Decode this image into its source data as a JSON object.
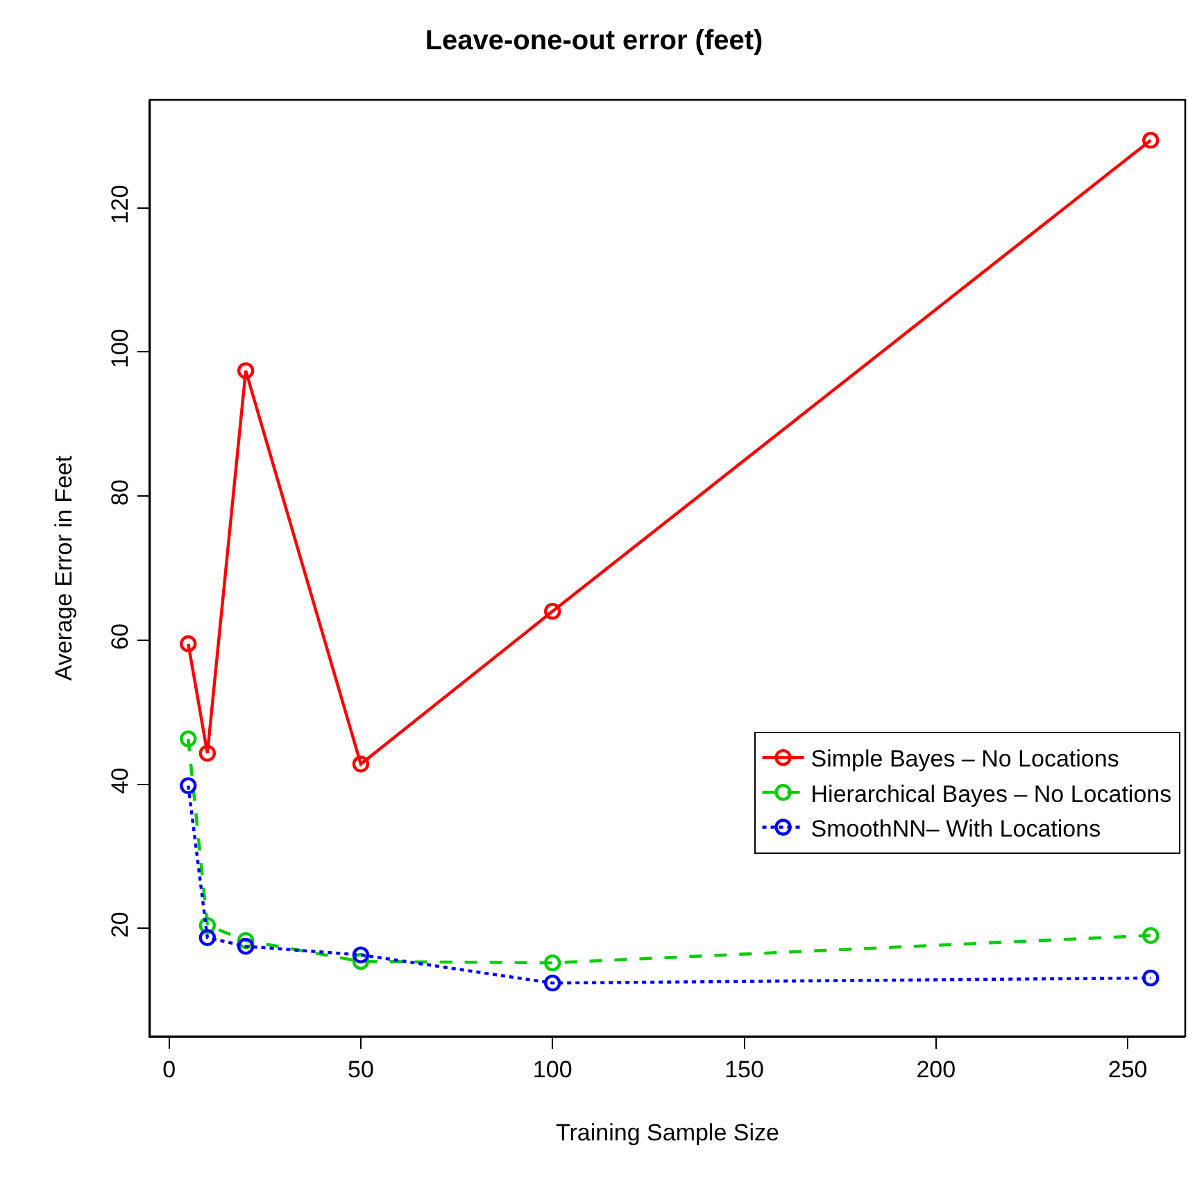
{
  "chart_data": {
    "type": "line",
    "title": "Leave-one-out error (feet)",
    "xlabel": "Training Sample Size",
    "ylabel": "Average Error in Feet",
    "x": [
      5,
      10,
      20,
      50,
      100,
      256
    ],
    "xlim": [
      -5,
      265
    ],
    "xticks": [
      0,
      50,
      100,
      150,
      200,
      250
    ],
    "ylim": [
      5,
      135
    ],
    "yticks": [
      20,
      40,
      60,
      80,
      100,
      120
    ],
    "legend": "right",
    "marker": "circle",
    "series": [
      {
        "name": "Simple Bayes – No Locations",
        "color": "#ff0000",
        "line_style": "solid",
        "values": [
          59.5,
          44.3,
          97.4,
          42.8,
          64,
          129.4
        ]
      },
      {
        "name": "Hierarchical Bayes – No Locations",
        "color": "#00cd00",
        "line_style": "dashed",
        "values": [
          46.3,
          20.4,
          18.3,
          15.4,
          15.2,
          19.0
        ]
      },
      {
        "name": "SmoothNN– With Locations",
        "color": "#0000ff",
        "line_style": "dotted",
        "values": [
          39.8,
          18.7,
          17.5,
          16.3,
          12.4,
          13.1
        ]
      }
    ]
  }
}
